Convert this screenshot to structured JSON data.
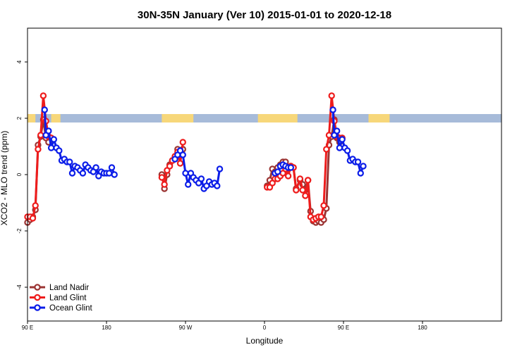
{
  "chart_data": {
    "type": "line",
    "title": "30N-35N January (Ver 10)   2015-01-01 to 2020-12-18",
    "xlabel": "Longitude",
    "ylabel": "XCO2 - MLO trend (ppm)",
    "xlim": [
      -90,
      270
    ],
    "ylim": [
      -5.2,
      5.2
    ],
    "x_ticks": [
      {
        "value": -90,
        "label": "90 E"
      },
      {
        "value": -30,
        "label": "180"
      },
      {
        "value": 30,
        "label": "90 W"
      },
      {
        "value": 90,
        "label": "0"
      },
      {
        "value": 150,
        "label": "90 E"
      },
      {
        "value": 210,
        "label": "180"
      }
    ],
    "y_ticks": [
      {
        "value": -4,
        "label": "-4"
      },
      {
        "value": -2,
        "label": "-2"
      },
      {
        "value": 0,
        "label": "0"
      },
      {
        "value": 2,
        "label": "2"
      },
      {
        "value": 4,
        "label": "4"
      }
    ],
    "legend_position": "bottom-left",
    "surface_band": {
      "y_range": [
        1.85,
        2.15
      ],
      "ocean_color": "#a7bbd9",
      "land_color": "#f7d77a",
      "land_segments": [
        [
          -90,
          -84
        ],
        [
          -72,
          -65
        ],
        [
          12,
          36
        ],
        [
          85,
          115
        ],
        [
          169,
          185
        ]
      ]
    },
    "series": [
      {
        "name": "Land Nadir",
        "color": "#9b3433",
        "points": [
          [
            -90,
            -1.7
          ],
          [
            -88,
            -1.6
          ],
          [
            -86,
            -1.5
          ],
          [
            -84,
            -1.25
          ],
          [
            -82,
            1.05
          ],
          [
            -80,
            1.35
          ],
          [
            -78,
            1.95
          ],
          [
            -76,
            1.3
          ],
          [
            -74,
            1.15
          ],
          [
            -72,
            1.3
          ],
          [
            12,
            0.0
          ],
          [
            14,
            -0.5
          ],
          [
            16,
            0.0
          ],
          [
            18,
            0.35
          ],
          [
            20,
            0.5
          ],
          [
            22,
            0.55
          ],
          [
            24,
            0.9
          ],
          [
            26,
            0.8
          ],
          [
            28,
            0.9
          ],
          [
            92,
            -0.4
          ],
          [
            94,
            -0.2
          ],
          [
            96,
            0.2
          ],
          [
            98,
            0.1
          ],
          [
            100,
            0.25
          ],
          [
            102,
            0.35
          ],
          [
            104,
            0.45
          ],
          [
            106,
            0.45
          ],
          [
            108,
            0.2
          ],
          [
            110,
            0.3
          ],
          [
            112,
            0.25
          ],
          [
            114,
            -0.5
          ],
          [
            117,
            -0.2
          ],
          [
            119,
            -0.35
          ],
          [
            121,
            -0.55
          ],
          [
            123,
            -0.2
          ],
          [
            125,
            -1.3
          ],
          [
            127,
            -1.65
          ],
          [
            129,
            -1.7
          ],
          [
            131,
            -1.65
          ],
          [
            133,
            -1.7
          ],
          [
            135,
            -1.6
          ],
          [
            137,
            -1.2
          ],
          [
            139,
            1.05
          ],
          [
            141,
            1.35
          ],
          [
            143,
            1.95
          ],
          [
            145,
            1.3
          ],
          [
            147,
            1.15
          ],
          [
            149,
            1.3
          ]
        ]
      },
      {
        "name": "Land Glint",
        "color": "#ee1c1c",
        "points": [
          [
            -90,
            -1.5
          ],
          [
            -88,
            -1.5
          ],
          [
            -86,
            -1.55
          ],
          [
            -84,
            -1.1
          ],
          [
            -82,
            0.9
          ],
          [
            -80,
            1.4
          ],
          [
            -78,
            2.8
          ],
          [
            -76,
            1.9
          ],
          [
            -74,
            1.35
          ],
          [
            -72,
            1.3
          ],
          [
            12,
            -0.1
          ],
          [
            14,
            -0.35
          ],
          [
            16,
            0.15
          ],
          [
            18,
            0.3
          ],
          [
            20,
            0.5
          ],
          [
            22,
            0.65
          ],
          [
            24,
            0.8
          ],
          [
            26,
            0.4
          ],
          [
            28,
            1.15
          ],
          [
            92,
            -0.45
          ],
          [
            94,
            -0.45
          ],
          [
            96,
            -0.3
          ],
          [
            98,
            -0.15
          ],
          [
            100,
            -0.15
          ],
          [
            102,
            -0.05
          ],
          [
            104,
            0.05
          ],
          [
            106,
            0.2
          ],
          [
            108,
            -0.05
          ],
          [
            110,
            0.3
          ],
          [
            112,
            0.25
          ],
          [
            114,
            -0.55
          ],
          [
            117,
            -0.15
          ],
          [
            119,
            -0.55
          ],
          [
            121,
            -0.75
          ],
          [
            123,
            -0.2
          ],
          [
            125,
            -1.5
          ],
          [
            127,
            -1.6
          ],
          [
            129,
            -1.55
          ],
          [
            131,
            -1.5
          ],
          [
            133,
            -1.5
          ],
          [
            135,
            -1.1
          ],
          [
            137,
            0.9
          ],
          [
            139,
            1.4
          ],
          [
            141,
            2.8
          ],
          [
            143,
            1.9
          ],
          [
            145,
            1.35
          ],
          [
            147,
            1.3
          ],
          [
            149,
            1.3
          ]
        ]
      },
      {
        "name": "Ocean Glint",
        "color": "#0b1de8",
        "points": [
          [
            -77,
            2.3
          ],
          [
            -76,
            1.4
          ],
          [
            -74,
            1.55
          ],
          [
            -72,
            0.95
          ],
          [
            -70,
            1.25
          ],
          [
            -68,
            0.95
          ],
          [
            -66,
            0.85
          ],
          [
            -64,
            0.5
          ],
          [
            -62,
            0.55
          ],
          [
            -60,
            0.45
          ],
          [
            -58,
            0.45
          ],
          [
            -56,
            0.05
          ],
          [
            -54,
            0.3
          ],
          [
            -52,
            0.25
          ],
          [
            -50,
            0.15
          ],
          [
            -48,
            0.05
          ],
          [
            -46,
            0.35
          ],
          [
            -44,
            0.25
          ],
          [
            -42,
            0.15
          ],
          [
            -40,
            0.1
          ],
          [
            -38,
            0.25
          ],
          [
            -36,
            -0.05
          ],
          [
            -34,
            0.1
          ],
          [
            -32,
            0.05
          ],
          [
            -30,
            0.05
          ],
          [
            -28,
            0.05
          ],
          [
            -26,
            0.25
          ],
          [
            -24,
            0.0
          ],
          [
            22,
            0.55
          ],
          [
            24,
            0.7
          ],
          [
            26,
            0.85
          ],
          [
            28,
            0.7
          ],
          [
            30,
            0.05
          ],
          [
            32,
            -0.35
          ],
          [
            34,
            0.05
          ],
          [
            36,
            -0.1
          ],
          [
            38,
            -0.2
          ],
          [
            40,
            -0.3
          ],
          [
            42,
            -0.15
          ],
          [
            44,
            -0.5
          ],
          [
            46,
            -0.4
          ],
          [
            48,
            -0.25
          ],
          [
            50,
            -0.35
          ],
          [
            52,
            -0.3
          ],
          [
            54,
            -0.4
          ],
          [
            56,
            0.2
          ],
          [
            98,
            0.05
          ],
          [
            100,
            0.1
          ],
          [
            102,
            0.3
          ],
          [
            104,
            0.35
          ],
          [
            106,
            0.3
          ],
          [
            108,
            0.25
          ],
          [
            110,
            0.25
          ],
          [
            142,
            2.3
          ],
          [
            143,
            1.4
          ],
          [
            145,
            1.55
          ],
          [
            147,
            0.95
          ],
          [
            149,
            1.25
          ],
          [
            151,
            0.95
          ],
          [
            153,
            0.85
          ],
          [
            155,
            0.5
          ],
          [
            157,
            0.55
          ],
          [
            159,
            0.45
          ],
          [
            161,
            0.45
          ],
          [
            163,
            0.05
          ],
          [
            165,
            0.3
          ]
        ]
      }
    ]
  }
}
